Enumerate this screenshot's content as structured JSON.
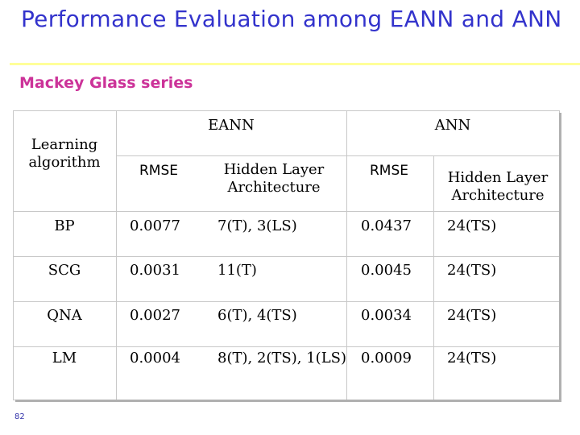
{
  "slide": {
    "title": "Performance Evaluation among EANN and ANN",
    "subtitle": "Mackey Glass series",
    "page_number": "82"
  },
  "table": {
    "group_headers": {
      "eann": "EANN",
      "ann": "ANN"
    },
    "learning_header": "Learning algorithm",
    "sub_headers": {
      "eann_rmse": "RMSE",
      "eann_arch": "Hidden Layer Architecture",
      "ann_rmse": "RMSE",
      "ann_arch": "Hidden Layer Architecture"
    },
    "rows": [
      {
        "algorithm": "BP",
        "eann_rmse": "0.0077",
        "eann_arch": "7(T), 3(LS)",
        "ann_rmse": "0.0437",
        "ann_arch": "24(TS)"
      },
      {
        "algorithm": "SCG",
        "eann_rmse": "0.0031",
        "eann_arch": "11(T)",
        "ann_rmse": "0.0045",
        "ann_arch": "24(TS)"
      },
      {
        "algorithm": "QNA",
        "eann_rmse": "0.0027",
        "eann_arch": "6(T), 4(TS)",
        "ann_rmse": "0.0034",
        "ann_arch": "24(TS)"
      },
      {
        "algorithm": "LM",
        "eann_rmse": "0.0004",
        "eann_arch": "8(T), 2(TS), 1(LS)",
        "ann_rmse": "0.0009",
        "ann_arch": "24(TS)"
      }
    ]
  },
  "colors": {
    "title": "#3333cc",
    "subtitle": "#cc3399",
    "rule": "#ffff99",
    "grid": "#c8c8c8"
  }
}
